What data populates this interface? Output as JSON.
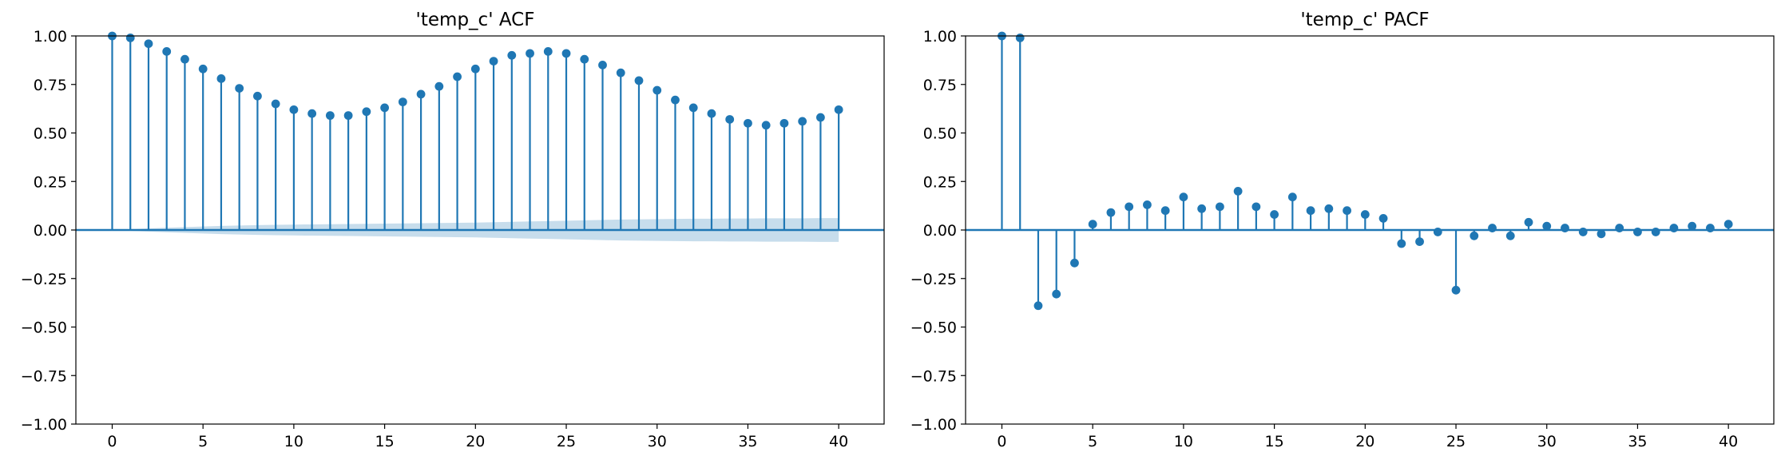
{
  "chart_data": [
    {
      "type": "stem",
      "title": "'temp_c' ACF",
      "xlabel": "",
      "ylabel": "",
      "xlim": [
        -2,
        42.5
      ],
      "ylim": [
        -1.0,
        1.0
      ],
      "xticks": [
        0,
        5,
        10,
        15,
        20,
        25,
        30,
        35,
        40
      ],
      "yticks": [
        -1.0,
        -0.75,
        -0.5,
        -0.25,
        0.0,
        0.25,
        0.5,
        0.75,
        1.0
      ],
      "yticklabels": [
        "−1.00",
        "−0.75",
        "−0.50",
        "−0.25",
        "0.00",
        "0.25",
        "0.50",
        "0.75",
        "1.00"
      ],
      "grid": false,
      "color": "#1f77b4",
      "band_color": "#1f77b4",
      "x": [
        0,
        1,
        2,
        3,
        4,
        5,
        6,
        7,
        8,
        9,
        10,
        11,
        12,
        13,
        14,
        15,
        16,
        17,
        18,
        19,
        20,
        21,
        22,
        23,
        24,
        25,
        26,
        27,
        28,
        29,
        30,
        31,
        32,
        33,
        34,
        35,
        36,
        37,
        38,
        39,
        40
      ],
      "values": [
        1.0,
        0.99,
        0.96,
        0.92,
        0.88,
        0.83,
        0.78,
        0.73,
        0.69,
        0.65,
        0.62,
        0.6,
        0.59,
        0.59,
        0.61,
        0.63,
        0.66,
        0.7,
        0.74,
        0.79,
        0.83,
        0.87,
        0.9,
        0.91,
        0.92,
        0.91,
        0.88,
        0.85,
        0.81,
        0.77,
        0.72,
        0.67,
        0.63,
        0.6,
        0.57,
        0.55,
        0.54,
        0.55,
        0.56,
        0.58,
        0.62
      ],
      "confidence_band": {
        "x": [
          0,
          1,
          2,
          3,
          4,
          5,
          6,
          7,
          8,
          9,
          10,
          11,
          12,
          13,
          14,
          15,
          16,
          17,
          18,
          19,
          20,
          21,
          22,
          23,
          24,
          25,
          26,
          27,
          28,
          29,
          30,
          31,
          32,
          33,
          34,
          35,
          36,
          37,
          38,
          39,
          40
        ],
        "upper": [
          0.0,
          0.004,
          0.008,
          0.012,
          0.015,
          0.018,
          0.021,
          0.023,
          0.025,
          0.027,
          0.028,
          0.029,
          0.03,
          0.031,
          0.032,
          0.033,
          0.034,
          0.035,
          0.036,
          0.037,
          0.038,
          0.04,
          0.042,
          0.044,
          0.046,
          0.048,
          0.05,
          0.052,
          0.054,
          0.055,
          0.056,
          0.057,
          0.058,
          0.058,
          0.059,
          0.059,
          0.06,
          0.06,
          0.06,
          0.061,
          0.061
        ],
        "lower": [
          0.0,
          -0.004,
          -0.008,
          -0.012,
          -0.015,
          -0.018,
          -0.021,
          -0.023,
          -0.025,
          -0.027,
          -0.028,
          -0.029,
          -0.03,
          -0.031,
          -0.032,
          -0.033,
          -0.034,
          -0.035,
          -0.036,
          -0.037,
          -0.038,
          -0.04,
          -0.042,
          -0.044,
          -0.046,
          -0.048,
          -0.05,
          -0.052,
          -0.054,
          -0.055,
          -0.056,
          -0.057,
          -0.058,
          -0.058,
          -0.059,
          -0.059,
          -0.06,
          -0.06,
          -0.06,
          -0.061,
          -0.061
        ]
      }
    },
    {
      "type": "stem",
      "title": "'temp_c' PACF",
      "xlabel": "",
      "ylabel": "",
      "xlim": [
        -2,
        42.5
      ],
      "ylim": [
        -1.0,
        1.0
      ],
      "xticks": [
        0,
        5,
        10,
        15,
        20,
        25,
        30,
        35,
        40
      ],
      "yticks": [
        -1.0,
        -0.75,
        -0.5,
        -0.25,
        0.0,
        0.25,
        0.5,
        0.75,
        1.0
      ],
      "yticklabels": [
        "−1.00",
        "−0.75",
        "−0.50",
        "−0.25",
        "0.00",
        "0.25",
        "0.50",
        "0.75",
        "1.00"
      ],
      "grid": false,
      "color": "#1f77b4",
      "x": [
        0,
        1,
        2,
        3,
        4,
        5,
        6,
        7,
        8,
        9,
        10,
        11,
        12,
        13,
        14,
        15,
        16,
        17,
        18,
        19,
        20,
        21,
        22,
        23,
        24,
        25,
        26,
        27,
        28,
        29,
        30,
        31,
        32,
        33,
        34,
        35,
        36,
        37,
        38,
        39,
        40
      ],
      "values": [
        1.0,
        0.99,
        -0.39,
        -0.33,
        -0.17,
        0.03,
        0.09,
        0.12,
        0.13,
        0.1,
        0.17,
        0.11,
        0.12,
        0.2,
        0.12,
        0.08,
        0.17,
        0.1,
        0.11,
        0.1,
        0.08,
        0.06,
        -0.07,
        -0.06,
        -0.01,
        -0.31,
        -0.03,
        0.01,
        -0.03,
        0.04,
        0.02,
        0.01,
        -0.01,
        -0.02,
        0.01,
        -0.01,
        -0.01,
        0.01,
        0.02,
        0.01,
        0.03
      ]
    }
  ]
}
